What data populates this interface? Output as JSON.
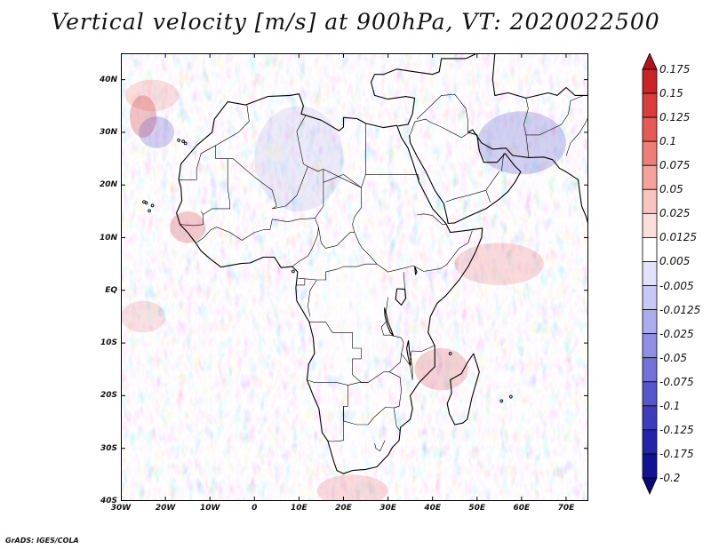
{
  "title": "Vertical velocity [m/s] at 900hPa, VT: 2020022500",
  "credit": "GrADS: IGES/COLA",
  "map": {
    "lon_range": [
      -30,
      75
    ],
    "lat_range": [
      -40,
      45
    ],
    "lat_ticks": [
      {
        "value": 40,
        "label": "40N"
      },
      {
        "value": 30,
        "label": "30N"
      },
      {
        "value": 20,
        "label": "20N"
      },
      {
        "value": 10,
        "label": "10N"
      },
      {
        "value": 0,
        "label": "EQ"
      },
      {
        "value": -10,
        "label": "10S"
      },
      {
        "value": -20,
        "label": "20S"
      },
      {
        "value": -30,
        "label": "30S"
      },
      {
        "value": -40,
        "label": "40S"
      }
    ],
    "lon_ticks": [
      {
        "value": -30,
        "label": "30W"
      },
      {
        "value": -20,
        "label": "20W"
      },
      {
        "value": -10,
        "label": "10W"
      },
      {
        "value": 0,
        "label": "0"
      },
      {
        "value": 10,
        "label": "10E"
      },
      {
        "value": 20,
        "label": "20E"
      },
      {
        "value": 30,
        "label": "30E"
      },
      {
        "value": 40,
        "label": "40E"
      },
      {
        "value": 50,
        "label": "50E"
      },
      {
        "value": 60,
        "label": "60E"
      },
      {
        "value": 70,
        "label": "70E"
      }
    ]
  },
  "colorbar": {
    "levels": [
      "0.175",
      "0.15",
      "0.125",
      "0.1",
      "0.075",
      "0.05",
      "0.025",
      "0.0125",
      "0.005",
      "-0.005",
      "-0.0125",
      "-0.025",
      "-0.05",
      "-0.075",
      "-0.1",
      "-0.125",
      "-0.175",
      "-0.2"
    ],
    "colors": [
      "#b0141c",
      "#cb2228",
      "#dc3c3c",
      "#e65a55",
      "#ef7f76",
      "#f5a29a",
      "#f9c4bd",
      "#fcdfda",
      "#ffffff",
      "#e2e2fb",
      "#c8c8f6",
      "#acacf0",
      "#8f8fe6",
      "#7272da",
      "#5656cc",
      "#3c3cbd",
      "#2424aa",
      "#121294",
      "#080878"
    ]
  }
}
